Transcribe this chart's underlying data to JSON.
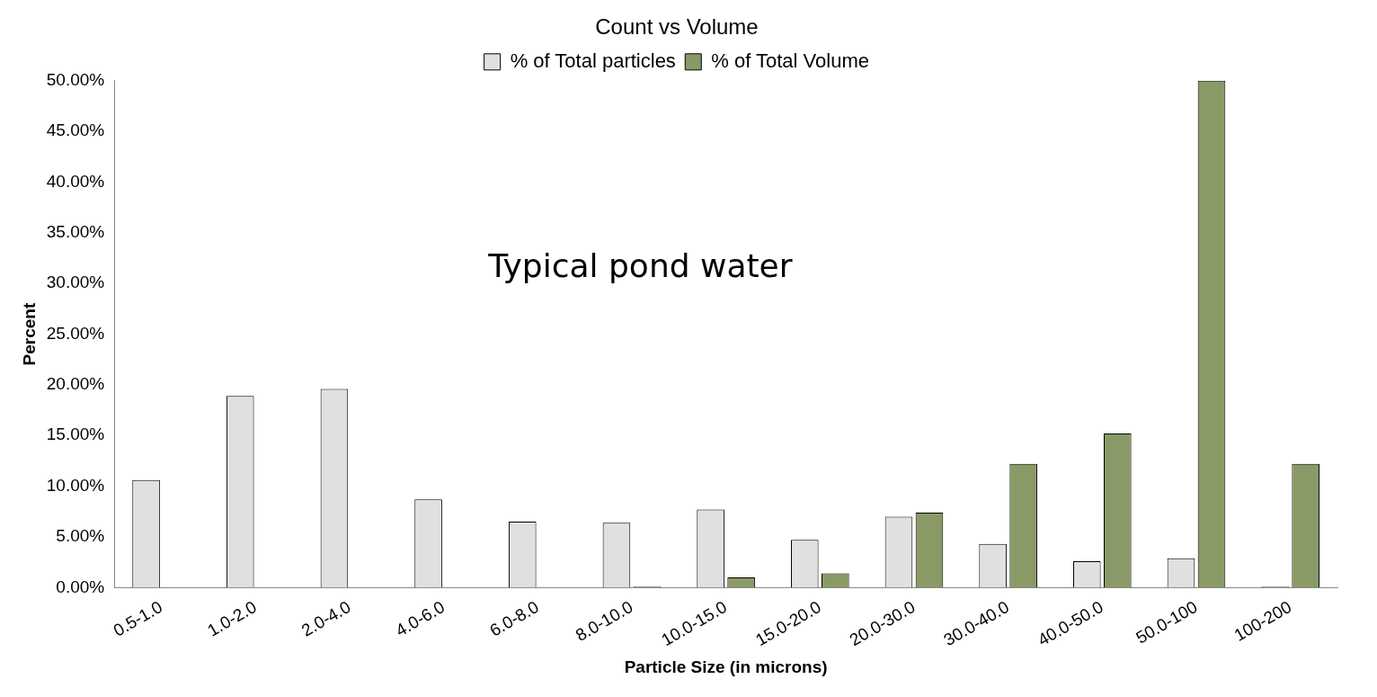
{
  "chart_data": {
    "type": "bar",
    "title": "Count vs Volume",
    "xlabel": "Particle Size (in microns)",
    "ylabel": "Percent",
    "categories": [
      "0.5-1.0",
      "1.0-2.0",
      "2.0-4.0",
      "4.0-6.0",
      "6.0-8.0",
      "8.0-10.0",
      "10.0-15.0",
      "15.0-20.0",
      "20.0-30.0",
      "30.0-40.0",
      "40.0-50.0",
      "50.0-100",
      "100-200"
    ],
    "series": [
      {
        "name": "% of Total particles",
        "color": "#e0e0e0",
        "values": [
          10.6,
          18.9,
          19.6,
          8.7,
          6.5,
          6.4,
          7.7,
          4.7,
          7.0,
          4.3,
          2.6,
          2.9,
          0.1
        ]
      },
      {
        "name": "% of Total Volume",
        "color": "#8a9a66",
        "values": [
          0,
          0,
          0,
          0,
          0,
          0.1,
          1.0,
          1.4,
          7.4,
          12.2,
          15.2,
          50.0,
          12.2
        ]
      }
    ],
    "ylim": [
      0,
      50
    ],
    "yticks": [
      {
        "value": 0,
        "label": "0.00%"
      },
      {
        "value": 5,
        "label": "5.00%"
      },
      {
        "value": 10,
        "label": "10.00%"
      },
      {
        "value": 15,
        "label": "15.00%"
      },
      {
        "value": 20,
        "label": "20.00%"
      },
      {
        "value": 25,
        "label": "25.00%"
      },
      {
        "value": 30,
        "label": "30.00%"
      },
      {
        "value": 35,
        "label": "35.00%"
      },
      {
        "value": 40,
        "label": "40.00%"
      },
      {
        "value": 45,
        "label": "45.00%"
      },
      {
        "value": 50,
        "label": "50.00%"
      }
    ],
    "annotations": [
      "Typical pond water"
    ],
    "grid": false,
    "legend": "top"
  }
}
